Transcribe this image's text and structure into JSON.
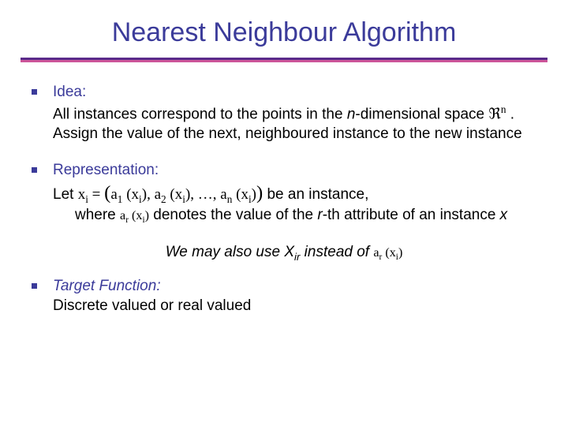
{
  "slide": {
    "title": "Nearest Neighbour Algorithm",
    "title_color": "#3b3b9a",
    "rule_top_color": "#5a2a8a",
    "rule_bottom_color": "#cc5599",
    "background_color": "#ffffff",
    "bullet_marker_color": "#3b3b9a",
    "body_font_size_pt": 19,
    "title_font_size_pt": 34
  },
  "idea": {
    "heading": "Idea:",
    "line1_pre": "All instances correspond to the points in the ",
    "n": "n",
    "line1_mid": "-dimensional space ",
    "space_symbol": "ℜ",
    "space_sup": "n",
    "line1_post": " . ",
    "line2": "Assign the value of the next, neighboured instance to the new instance"
  },
  "representation": {
    "heading": "Representation:",
    "let": "Let  ",
    "formula_var": "x",
    "formula_var_sub": "i",
    "eq": " = ",
    "lparen": "(",
    "a": "a",
    "sub1": "1",
    "arg_l": " (",
    "arg_var": "x",
    "arg_sub": "i",
    "arg_r": ")",
    "comma": ", ",
    "sub2": "2",
    "dots": ", …, ",
    "subn": "n",
    "rparen": ")",
    "be_instance": "   be an instance,",
    "where": "where ",
    "ar": "a",
    "ar_sub": "r",
    "xi_l": " (",
    "xi_var": "x",
    "xi_sub": "i",
    "xi_r": ")",
    "denotes_pre": "  denotes the value of the ",
    "r": "r",
    "denotes_mid": "-th attribute of an instance ",
    "x": "x"
  },
  "note": {
    "pre": "We may also use X",
    "sub": "ir",
    "mid": " instead of ",
    "f_a": "a",
    "f_r": "r",
    "f_l": " (",
    "f_x": "x",
    "f_i": "i",
    "f_rp": ")"
  },
  "target": {
    "heading": "Target Function:",
    "body": "Discrete valued or  real valued"
  }
}
